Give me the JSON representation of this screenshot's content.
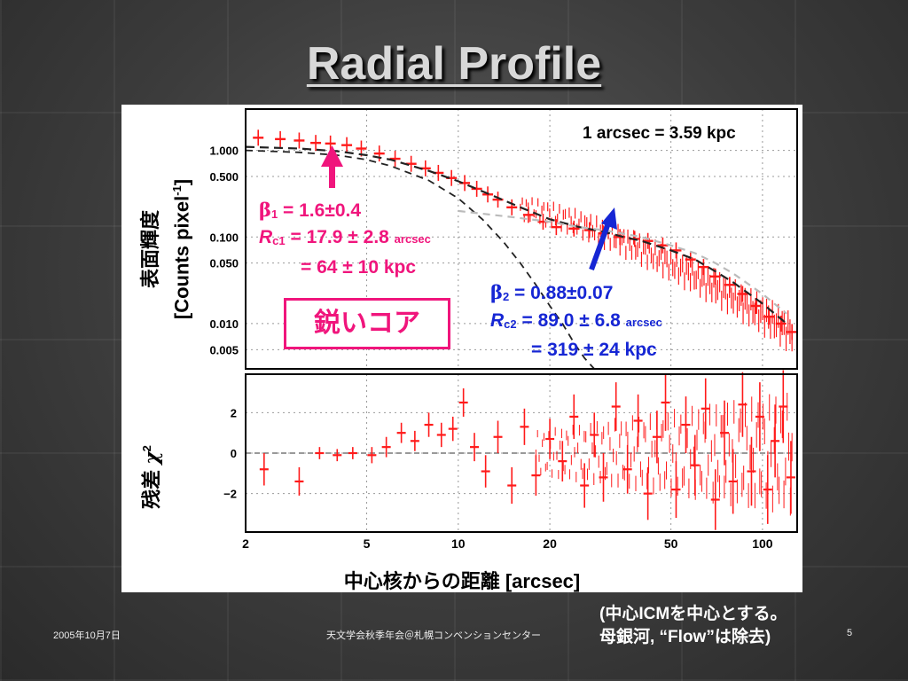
{
  "slide": {
    "title": "Radial Profile",
    "footer_date": "2005年10月7日",
    "footer_event": "天文学会秋季年会＠札幌コンベンションセンター",
    "page_number": "5",
    "note_line1": "(中心ICMを中心とする。",
    "note_line2": "母銀河, “Flow”は除去)"
  },
  "annotations": {
    "scale": "1 arcsec = 3.59 kpc",
    "core_label": "鋭いコア",
    "beta1": "β",
    "beta1_sub": "1",
    "beta1_value": " = 1.6±0.4",
    "rc1": "R",
    "rc1_sub": "c1",
    "rc1_value": " = 17.9 ± 2.8 ",
    "rc1_unit": "arcsec",
    "rc1_kpc": "= 64 ± 10 kpc",
    "beta2": "β",
    "beta2_sub": "2",
    "beta2_value": " = 0.88±0.07",
    "rc2": "R",
    "rc2_sub": "c2",
    "rc2_value": " = 89.0 ± 6.8 ",
    "rc2_unit": "arcsec",
    "rc2_kpc": "= 319 ± 24 kpc",
    "colors": {
      "pink": "#f0157c",
      "blue": "#1626d4",
      "data": "#ff1a1a"
    }
  },
  "chart_data": [
    {
      "type": "scatter",
      "panel": "surface-brightness",
      "xscale": "log",
      "yscale": "log",
      "xlim": [
        2,
        130
      ],
      "ylim": [
        0.003,
        3
      ],
      "ylabel_jp": "表面輝度",
      "ylabel_unit": "[Counts pixel",
      "ylabel_unit_sup": "-1",
      "ylabel_unit_end": "]",
      "yticks": [
        {
          "value": 1.0,
          "label": "1.000"
        },
        {
          "value": 0.5,
          "label": "0.500"
        },
        {
          "value": 0.1,
          "label": "0.100"
        },
        {
          "value": 0.05,
          "label": "0.050"
        },
        {
          "value": 0.01,
          "label": "0.010"
        },
        {
          "value": 0.005,
          "label": "0.005"
        }
      ],
      "series": [
        {
          "style": "data-with-errorbars",
          "x": [
            2.2,
            2.6,
            3.0,
            3.4,
            3.8,
            4.3,
            4.8,
            5.5,
            6.2,
            7.0,
            7.8,
            8.6,
            9.5,
            10.5,
            11.5,
            12.5,
            13.5,
            15,
            17,
            19,
            21,
            24,
            27,
            30,
            34,
            38,
            42,
            47,
            52,
            58,
            64,
            70,
            78,
            86,
            95,
            105,
            115,
            125
          ],
          "y": [
            1.4,
            1.35,
            1.3,
            1.22,
            1.2,
            1.15,
            1.05,
            0.92,
            0.8,
            0.7,
            0.62,
            0.55,
            0.48,
            0.42,
            0.36,
            0.31,
            0.27,
            0.22,
            0.18,
            0.15,
            0.13,
            0.125,
            0.12,
            0.11,
            0.1,
            0.095,
            0.09,
            0.08,
            0.07,
            0.055,
            0.045,
            0.035,
            0.028,
            0.022,
            0.016,
            0.012,
            0.01,
            0.008
          ]
        },
        {
          "style": "model-total",
          "x": [
            2,
            3,
            4,
            5,
            6,
            8,
            10,
            13,
            16,
            20,
            25,
            30,
            35,
            40,
            50,
            60,
            70,
            80,
            100,
            120
          ],
          "y": [
            1.1,
            1.05,
            0.98,
            0.88,
            0.78,
            0.58,
            0.44,
            0.3,
            0.22,
            0.16,
            0.13,
            0.115,
            0.1,
            0.09,
            0.07,
            0.055,
            0.04,
            0.03,
            0.017,
            0.01
          ]
        },
        {
          "style": "model-beta1",
          "x": [
            2,
            3,
            4,
            5,
            6,
            8,
            10,
            12,
            14,
            16,
            18,
            20,
            22,
            24,
            26,
            28
          ],
          "y": [
            1.0,
            0.95,
            0.88,
            0.78,
            0.66,
            0.45,
            0.28,
            0.16,
            0.09,
            0.05,
            0.028,
            0.016,
            0.01,
            0.006,
            0.004,
            0.003
          ]
        },
        {
          "style": "model-beta2",
          "x": [
            10,
            15,
            20,
            25,
            30,
            40,
            50,
            60,
            70,
            80,
            100,
            120
          ],
          "y": [
            0.2,
            0.17,
            0.15,
            0.13,
            0.12,
            0.1,
            0.08,
            0.065,
            0.05,
            0.038,
            0.022,
            0.013
          ]
        }
      ]
    },
    {
      "type": "scatter",
      "panel": "residuals",
      "xscale": "log",
      "xlim": [
        2,
        130
      ],
      "ylim": [
        -3.9,
        3.9
      ],
      "ylabel_jp": "残差 ",
      "ylabel_sym": "χ",
      "ylabel_sup": "2",
      "xlabel": "中心核からの距離 [arcsec]",
      "xticks": [
        {
          "value": 2,
          "label": "2"
        },
        {
          "value": 5,
          "label": "5"
        },
        {
          "value": 10,
          "label": "10"
        },
        {
          "value": 20,
          "label": "20"
        },
        {
          "value": 50,
          "label": "50"
        },
        {
          "value": 100,
          "label": "100"
        }
      ],
      "yticks": [
        {
          "value": 2,
          "label": "2"
        },
        {
          "value": 0,
          "label": "0"
        },
        {
          "value": -2,
          "label": "−2"
        }
      ],
      "series": [
        {
          "style": "residual-errorbars",
          "x": [
            2.3,
            3.0,
            3.5,
            4.0,
            4.5,
            5.2,
            5.8,
            6.5,
            7.2,
            8.0,
            8.8,
            9.6,
            10.4,
            11.3,
            12.3,
            13.5,
            15,
            16.5,
            18,
            20,
            22,
            24,
            26,
            28,
            30,
            33,
            36,
            39,
            42,
            45,
            48,
            52,
            56,
            60,
            65,
            70,
            75,
            80,
            86,
            92,
            98,
            104,
            110,
            117,
            124
          ],
          "y": [
            -0.8,
            -1.4,
            0.0,
            -0.1,
            0.0,
            -0.1,
            0.3,
            1.0,
            0.6,
            1.4,
            0.9,
            1.2,
            2.5,
            0.3,
            -0.9,
            0.8,
            -1.6,
            1.3,
            -1.1,
            0.7,
            -0.4,
            1.8,
            -1.6,
            0.9,
            -1.2,
            2.3,
            -0.8,
            1.6,
            -2.0,
            0.8,
            2.5,
            -1.8,
            1.4,
            -0.6,
            2.2,
            -2.3,
            1.0,
            -1.4,
            2.4,
            -0.9,
            1.8,
            -1.8,
            0.6,
            2.3,
            -1.2
          ],
          "err": [
            0.8,
            0.7,
            0.3,
            0.3,
            0.3,
            0.4,
            0.5,
            0.5,
            0.5,
            0.6,
            0.6,
            0.6,
            0.7,
            0.7,
            0.8,
            0.8,
            0.9,
            0.9,
            1.0,
            1.0,
            1.0,
            1.1,
            1.1,
            1.1,
            1.2,
            1.2,
            1.2,
            1.3,
            1.3,
            1.3,
            1.4,
            1.4,
            1.4,
            1.5,
            1.5,
            1.5,
            1.6,
            1.6,
            1.6,
            1.7,
            1.7,
            1.7,
            1.8,
            1.8,
            1.8
          ]
        }
      ]
    }
  ]
}
